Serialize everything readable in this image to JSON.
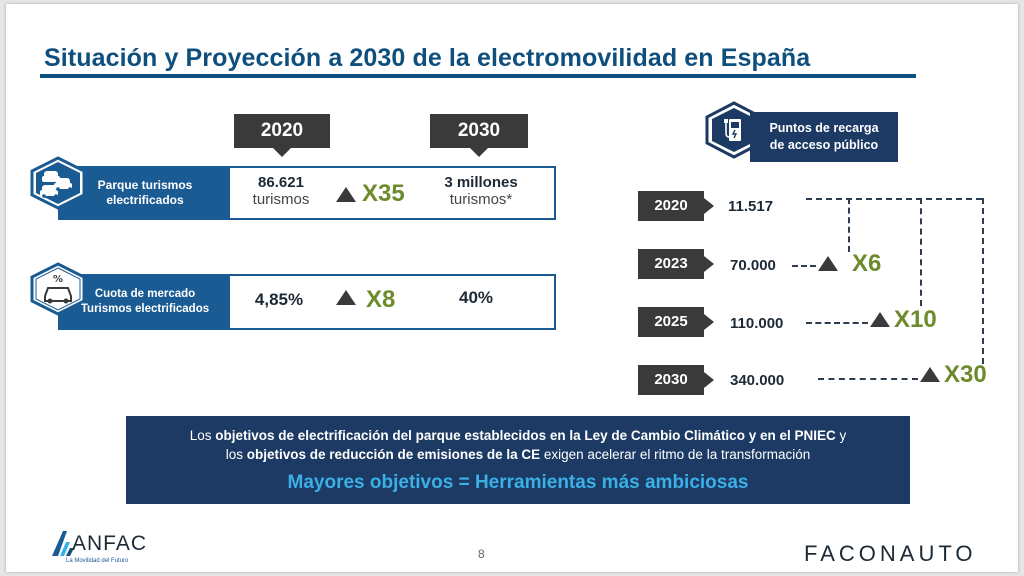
{
  "title": "Situación y Proyección a 2030 de la electromovilidad en España",
  "years": {
    "y2020": "2020",
    "y2030": "2030"
  },
  "rows": [
    {
      "label": "Parque turismos electrificados",
      "icon": "cars-icon",
      "v2020": "86.621",
      "v2020_unit": "turismos",
      "multiplier": "X35",
      "v2030": "3 millones",
      "v2030_unit": "turismos*"
    },
    {
      "label": "Cuota de mercado Turismos electrificados",
      "icon": "car-percent-icon",
      "v2020": "4,85%",
      "multiplier": "X8",
      "v2030": "40%"
    }
  ],
  "recarga": {
    "title_line1": "Puntos de recarga",
    "title_line2": "de acceso público",
    "icon": "charging-station-icon",
    "entries": [
      {
        "year": "2020",
        "value": "11.517"
      },
      {
        "year": "2023",
        "value": "70.000",
        "multiplier": "X6"
      },
      {
        "year": "2025",
        "value": "110.000",
        "multiplier": "X10"
      },
      {
        "year": "2030",
        "value": "340.000",
        "multiplier": "X30"
      }
    ]
  },
  "banner": {
    "l1_a": "Los ",
    "l1_b": "objetivos de electrificación del parque establecidos en la Ley de Cambio Climático y en el PNIEC",
    "l1_c": " y",
    "l2_a": "los ",
    "l2_b": "objetivos de reducción de emisiones de la CE",
    "l2_c": " exigen acelerar el ritmo de la transformación",
    "headline": "Mayores objetivos = Herramientas más ambiciosas"
  },
  "footer": {
    "page": "8",
    "logo_left": "ANFAC",
    "logo_left_tagline": "La Movilidad del Futuro",
    "logo_right": "FACONAUTO"
  },
  "colors": {
    "navy": "#1c3a63",
    "blue": "#1b5b93",
    "title": "#0e4f7e",
    "dark": "#3a3a3a",
    "green": "#6d8a2c",
    "cyan": "#3ab0e6"
  }
}
